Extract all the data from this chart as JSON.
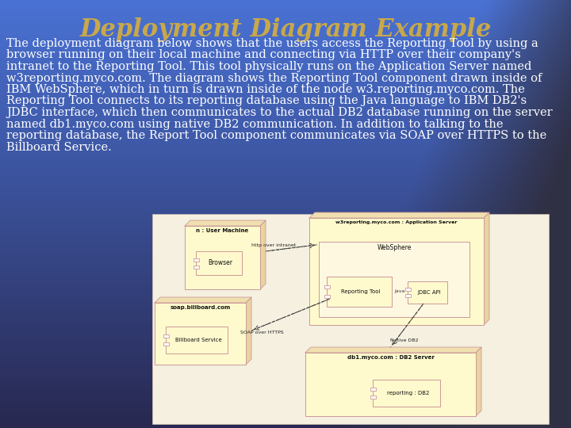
{
  "title": "Deployment Diagram Example",
  "title_color": "#C8A84B",
  "title_fontsize": 22,
  "description_lines": [
    "The deployment diagram below shows that the users access the Reporting Tool by using a",
    "browser running on their local machine and connecting via HTTP over their company's",
    "intranet to the Reporting Tool. This tool physically runs on the Application Server named",
    "w3reporting.myco.com. The diagram shows the Reporting Tool component drawn inside of",
    "IBM WebSphere, which in turn is drawn inside of the node w3.reporting.myco.com. The",
    "Reporting Tool connects to its reporting database using the Java language to IBM DB2's",
    "JDBC interface, which then communicates to the actual DB2 database running on the server",
    "named db1.myco.com using native DB2 communication. In addition to talking to the",
    "reporting database, the Report Tool component communicates via SOAP over HTTPS to the",
    "Billboard Service."
  ],
  "text_color": "#ffffff",
  "text_fontsize": 10.5,
  "node_bg": "#fffacd",
  "node_border": "#cc9999",
  "node_side_color": "#e8d4a0",
  "node_top_color": "#f0e0b0",
  "ws_bg": "#fff8e0",
  "comp_bg": "#fffacd",
  "comp_border": "#cc9999",
  "diagram_panel_bg": "#f5f0e0",
  "diagram_panel_border": "#ccbbaa"
}
